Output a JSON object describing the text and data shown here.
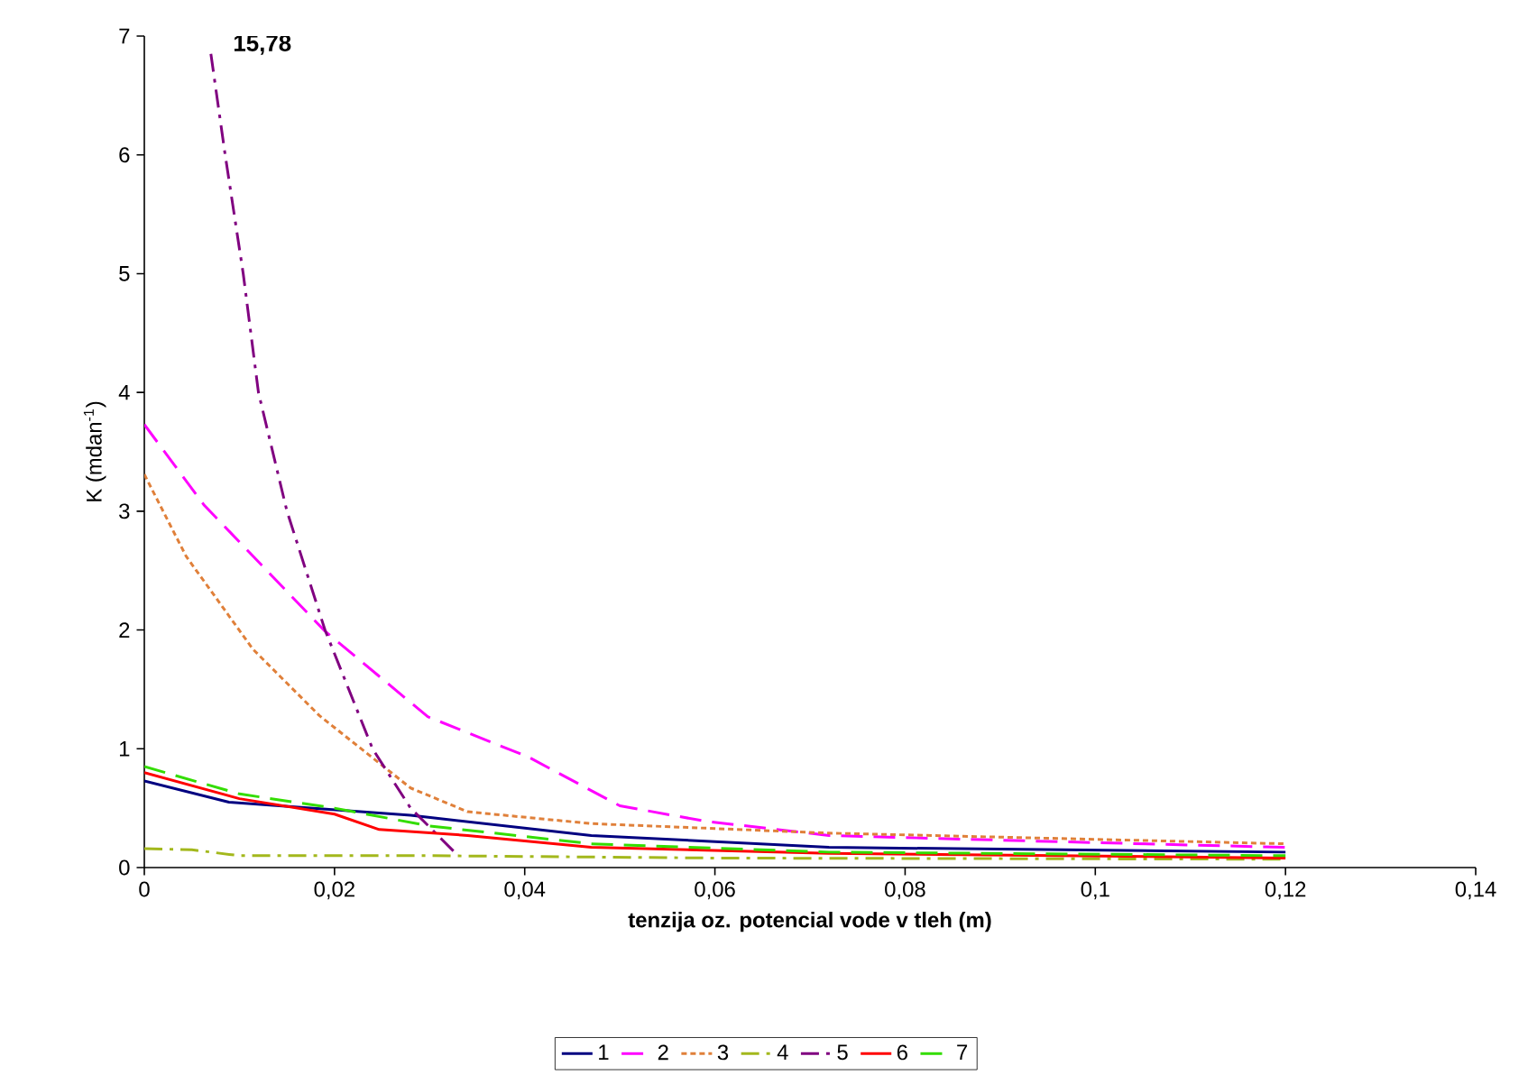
{
  "chart_data": {
    "type": "line",
    "xlabel": "tenzija oz. potencial vode v tleh (m)",
    "ylabel": "K (mdan$^{-1}$)",
    "annotations": [
      "15,78"
    ],
    "xlim": [
      0,
      0.14
    ],
    "ylim": [
      0,
      7
    ],
    "xticks": [
      0,
      {
        "value": 0.02,
        "label": "0,02"
      },
      {
        "value": 0.04,
        "label": "0,04"
      },
      {
        "value": 0.06,
        "label": "0,06"
      },
      {
        "value": 0.08,
        "label": "0,08"
      },
      {
        "value": 0.1,
        "label": "0,1"
      },
      {
        "value": 0.12,
        "label": "0,12"
      },
      {
        "value": 0.14,
        "label": "0,14"
      }
    ],
    "yticks": [
      0,
      1,
      2,
      3,
      4,
      5,
      6,
      7
    ],
    "grid": false,
    "legend": "bottom",
    "marker": "none",
    "series": [
      {
        "name": "1",
        "color": "#000080",
        "line_style": "solid",
        "x": [
          0,
          0.0089,
          0.028,
          0.047,
          0.072,
          0.12
        ],
        "values": [
          0.73,
          0.55,
          0.44,
          0.27,
          0.17,
          0.13
        ]
      },
      {
        "name": "2",
        "color": "#ff00ff",
        "line_style": "dashed",
        "x": [
          0,
          0.0063,
          0.019,
          0.0298,
          0.0404,
          0.05,
          0.059,
          0.072,
          0.095,
          0.12
        ],
        "values": [
          3.73,
          3.05,
          1.99,
          1.27,
          0.93,
          0.52,
          0.39,
          0.27,
          0.22,
          0.17
        ]
      },
      {
        "name": "3",
        "color": "#e0803a",
        "line_style": "dotted",
        "x": [
          0,
          0.0044,
          0.0114,
          0.0184,
          0.028,
          0.034,
          0.047,
          0.072,
          0.12
        ],
        "values": [
          3.31,
          2.62,
          1.84,
          1.28,
          0.67,
          0.47,
          0.37,
          0.29,
          0.2
        ]
      },
      {
        "name": "4",
        "color": "#a3b81c",
        "line_style": "dashdot",
        "x": [
          0,
          0.005,
          0.01,
          0.03,
          0.06,
          0.12
        ],
        "values": [
          0.16,
          0.15,
          0.1,
          0.1,
          0.08,
          0.07
        ]
      },
      {
        "name": "5",
        "color": "#800080",
        "line_style": "dashdot",
        "x": [
          0.007,
          0.0085,
          0.0104,
          0.012,
          0.015,
          0.019,
          0.024,
          0.028,
          0.033
        ],
        "values": [
          6.85,
          6.0,
          5.0,
          4.0,
          3.0,
          2.0,
          1.0,
          0.5,
          0.1
        ]
      },
      {
        "name": "6",
        "color": "#ff0000",
        "line_style": "solid",
        "x": [
          0,
          0.01,
          0.02,
          0.0247,
          0.034,
          0.047,
          0.072,
          0.12
        ],
        "values": [
          0.8,
          0.58,
          0.45,
          0.32,
          0.27,
          0.17,
          0.12,
          0.08
        ]
      },
      {
        "name": "7",
        "color": "#33dd00",
        "line_style": "dashed",
        "x": [
          0,
          0.01,
          0.02,
          0.03,
          0.047,
          0.072,
          0.12
        ],
        "values": [
          0.85,
          0.62,
          0.5,
          0.35,
          0.2,
          0.13,
          0.1
        ]
      }
    ]
  }
}
